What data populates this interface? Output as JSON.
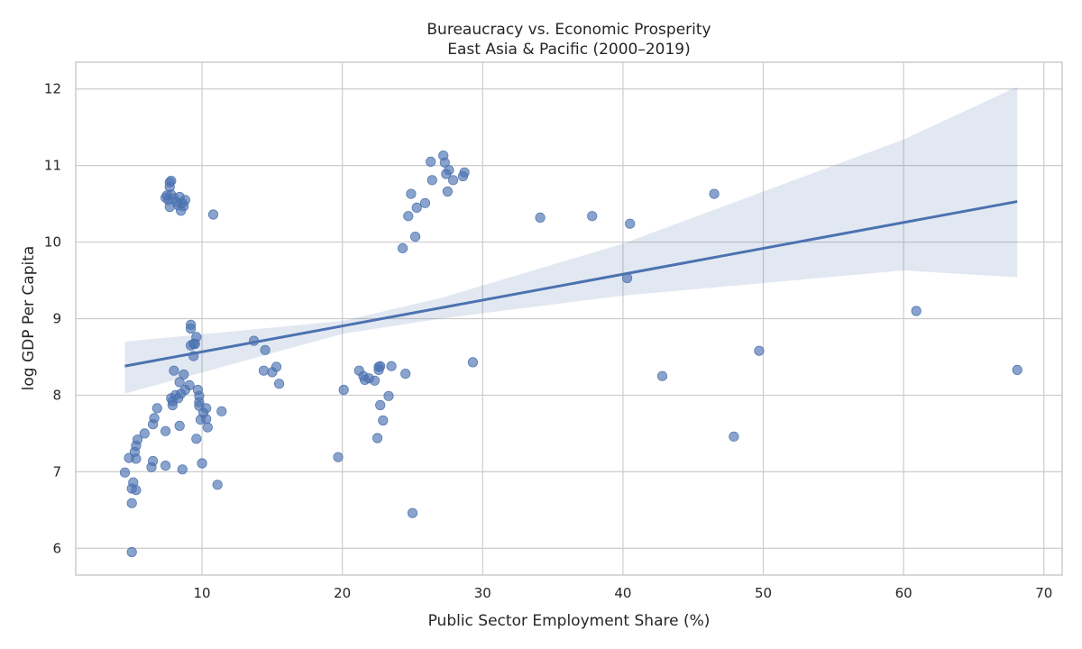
{
  "chart_data": {
    "type": "scatter",
    "title": "Bureaucracy vs. Economic Prosperity",
    "subtitle": "East Asia & Pacific (2000–2019)",
    "xlabel": "Public Sector Employment Share (%)",
    "ylabel": "log GDP Per Capita",
    "xlim": [
      1.0,
      71.3
    ],
    "ylim": [
      5.65,
      12.35
    ],
    "xticks": [
      10,
      20,
      30,
      40,
      50,
      60,
      70
    ],
    "yticks": [
      6,
      7,
      8,
      9,
      10,
      11,
      12
    ],
    "grid": true,
    "colors": {
      "points": "#4c72b0",
      "band": "#4c72b0",
      "grid": "#cccccc"
    },
    "regression": {
      "x": [
        4.5,
        68.1
      ],
      "y": [
        8.38,
        10.53
      ],
      "ci_band": {
        "x": [
          4.5,
          20,
          27,
          40,
          60,
          68.1
        ],
        "upper": [
          8.7,
          8.97,
          9.27,
          9.98,
          11.34,
          12.03
        ],
        "lower": [
          8.02,
          8.8,
          9.0,
          9.3,
          9.63,
          9.54
        ]
      }
    },
    "points": [
      [
        4.5,
        6.99
      ],
      [
        4.8,
        7.18
      ],
      [
        5.0,
        6.78
      ],
      [
        5.0,
        6.59
      ],
      [
        5.0,
        5.95
      ],
      [
        5.1,
        6.86
      ],
      [
        5.2,
        7.26
      ],
      [
        5.3,
        6.76
      ],
      [
        5.3,
        7.34
      ],
      [
        5.3,
        7.17
      ],
      [
        5.4,
        7.42
      ],
      [
        5.9,
        7.5
      ],
      [
        6.4,
        7.06
      ],
      [
        6.5,
        7.14
      ],
      [
        6.5,
        7.62
      ],
      [
        6.6,
        7.7
      ],
      [
        6.8,
        7.83
      ],
      [
        7.4,
        7.08
      ],
      [
        7.4,
        7.53
      ],
      [
        7.4,
        10.58
      ],
      [
        7.5,
        10.61
      ],
      [
        7.6,
        10.55
      ],
      [
        7.7,
        10.72
      ],
      [
        7.7,
        10.78
      ],
      [
        7.7,
        10.46
      ],
      [
        7.8,
        10.8
      ],
      [
        7.8,
        10.62
      ],
      [
        7.8,
        7.96
      ],
      [
        7.9,
        7.92
      ],
      [
        7.9,
        7.87
      ],
      [
        8.0,
        8.32
      ],
      [
        8.0,
        10.57
      ],
      [
        8.1,
        8.0
      ],
      [
        8.2,
        10.52
      ],
      [
        8.3,
        10.48
      ],
      [
        8.3,
        7.96
      ],
      [
        8.4,
        10.59
      ],
      [
        8.4,
        7.6
      ],
      [
        8.4,
        8.17
      ],
      [
        8.5,
        10.41
      ],
      [
        8.5,
        8.02
      ],
      [
        8.6,
        7.03
      ],
      [
        8.6,
        10.51
      ],
      [
        8.7,
        8.27
      ],
      [
        8.7,
        10.47
      ],
      [
        8.8,
        8.07
      ],
      [
        8.8,
        10.55
      ],
      [
        9.1,
        8.13
      ],
      [
        9.2,
        8.92
      ],
      [
        9.2,
        8.87
      ],
      [
        9.2,
        8.65
      ],
      [
        9.4,
        8.67
      ],
      [
        9.4,
        8.51
      ],
      [
        9.5,
        8.67
      ],
      [
        9.6,
        8.76
      ],
      [
        9.6,
        7.43
      ],
      [
        9.7,
        8.07
      ],
      [
        9.8,
        7.99
      ],
      [
        9.8,
        7.91
      ],
      [
        9.8,
        7.86
      ],
      [
        9.9,
        7.68
      ],
      [
        10.0,
        7.11
      ],
      [
        10.1,
        7.77
      ],
      [
        10.3,
        7.69
      ],
      [
        10.3,
        7.83
      ],
      [
        10.4,
        7.58
      ],
      [
        10.8,
        10.36
      ],
      [
        11.1,
        6.83
      ],
      [
        11.4,
        7.79
      ],
      [
        13.7,
        8.71
      ],
      [
        14.4,
        8.32
      ],
      [
        14.5,
        8.59
      ],
      [
        15.0,
        8.3
      ],
      [
        15.3,
        8.37
      ],
      [
        15.5,
        8.15
      ],
      [
        19.7,
        7.19
      ],
      [
        20.1,
        8.07
      ],
      [
        21.2,
        8.32
      ],
      [
        21.5,
        8.25
      ],
      [
        21.6,
        8.2
      ],
      [
        21.9,
        8.22
      ],
      [
        22.3,
        8.19
      ],
      [
        22.5,
        7.44
      ],
      [
        22.6,
        8.33
      ],
      [
        22.6,
        8.37
      ],
      [
        22.7,
        8.38
      ],
      [
        22.7,
        7.87
      ],
      [
        22.9,
        7.67
      ],
      [
        23.3,
        7.99
      ],
      [
        23.5,
        8.38
      ],
      [
        24.3,
        9.92
      ],
      [
        24.5,
        8.28
      ],
      [
        24.7,
        10.34
      ],
      [
        24.9,
        10.63
      ],
      [
        25.0,
        6.46
      ],
      [
        25.2,
        10.07
      ],
      [
        25.3,
        10.45
      ],
      [
        25.9,
        10.51
      ],
      [
        26.3,
        11.05
      ],
      [
        26.4,
        10.81
      ],
      [
        27.2,
        11.13
      ],
      [
        27.3,
        11.04
      ],
      [
        27.4,
        10.89
      ],
      [
        27.5,
        10.66
      ],
      [
        27.6,
        10.94
      ],
      [
        27.9,
        10.81
      ],
      [
        28.6,
        10.86
      ],
      [
        28.7,
        10.91
      ],
      [
        29.3,
        8.43
      ],
      [
        34.1,
        10.32
      ],
      [
        37.8,
        10.34
      ],
      [
        40.3,
        9.53
      ],
      [
        40.5,
        10.24
      ],
      [
        42.8,
        8.25
      ],
      [
        46.5,
        10.63
      ],
      [
        47.9,
        7.46
      ],
      [
        49.7,
        8.58
      ],
      [
        60.9,
        9.1
      ],
      [
        68.1,
        8.33
      ]
    ]
  }
}
